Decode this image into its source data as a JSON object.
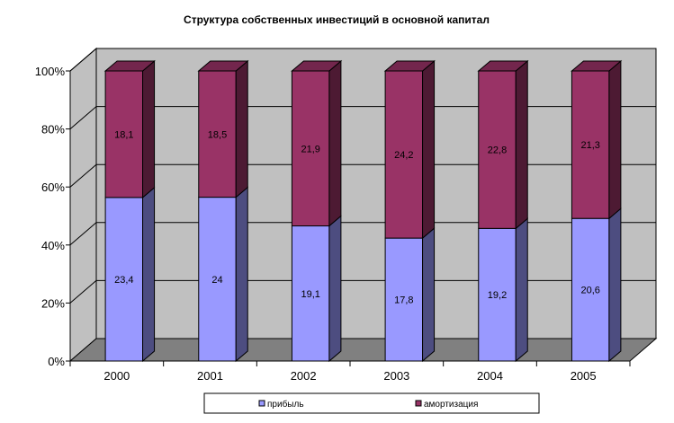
{
  "chart_data": {
    "type": "bar",
    "stacked": "percent",
    "three_d": true,
    "title": "Структура собственных инвестиций в основной капитал",
    "categories": [
      "2000",
      "2001",
      "2002",
      "2003",
      "2004",
      "2005"
    ],
    "series": [
      {
        "name": "прибыль",
        "values": [
          23.4,
          24,
          19.1,
          17.8,
          19.2,
          20.6
        ],
        "labels": [
          "23,4",
          "24",
          "19,1",
          "17,8",
          "19,2",
          "20,6"
        ],
        "color": "#9999ff"
      },
      {
        "name": "амортизация",
        "values": [
          18.1,
          18.5,
          21.9,
          24.2,
          22.8,
          21.3
        ],
        "labels": [
          "18,1",
          "18,5",
          "21,9",
          "24,2",
          "22,8",
          "21,3"
        ],
        "color": "#993366"
      }
    ],
    "ylim": [
      0,
      100
    ],
    "yticks": [
      "0%",
      "20%",
      "40%",
      "60%",
      "80%",
      "100%"
    ],
    "grid": true,
    "legend_position": "bottom",
    "wall_color": "#c0c0c0",
    "floor_color": "#808080"
  }
}
